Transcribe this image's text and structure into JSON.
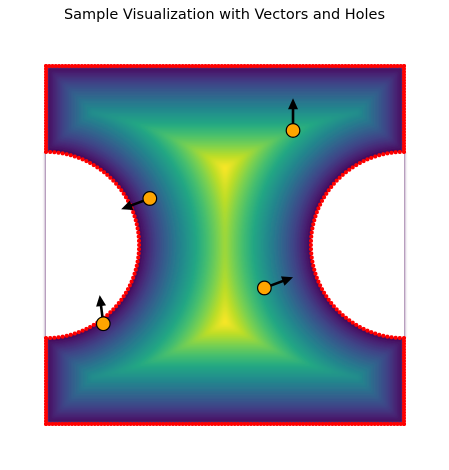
{
  "chart_data": {
    "type": "scatter",
    "title": "Sample Visualization with Vectors and Holes",
    "xlabel": "",
    "ylabel": "",
    "xlim": [
      0,
      1
    ],
    "ylim": [
      0,
      1
    ],
    "axes_visible": false,
    "grid": false,
    "domain": {
      "outer_rect": [
        0,
        0,
        1,
        1
      ],
      "holes": [
        {
          "cx": 0.0,
          "cy": 0.5,
          "r": 0.26
        },
        {
          "cx": 1.0,
          "cy": 0.5,
          "r": 0.26
        }
      ],
      "boundary_color": "#ff0000"
    },
    "colormap": "viridis",
    "field_description": "distance to boundary",
    "vectors": [
      {
        "x": 0.69,
        "y": 0.82,
        "u": 0.0,
        "v": 0.09
      },
      {
        "x": 0.29,
        "y": 0.63,
        "u": -0.08,
        "v": -0.03
      },
      {
        "x": 0.61,
        "y": 0.38,
        "u": 0.08,
        "v": 0.03
      },
      {
        "x": 0.16,
        "y": 0.28,
        "u": -0.01,
        "v": 0.08
      }
    ],
    "marker_color": "#ffa500",
    "arrow_color": "#000000"
  }
}
